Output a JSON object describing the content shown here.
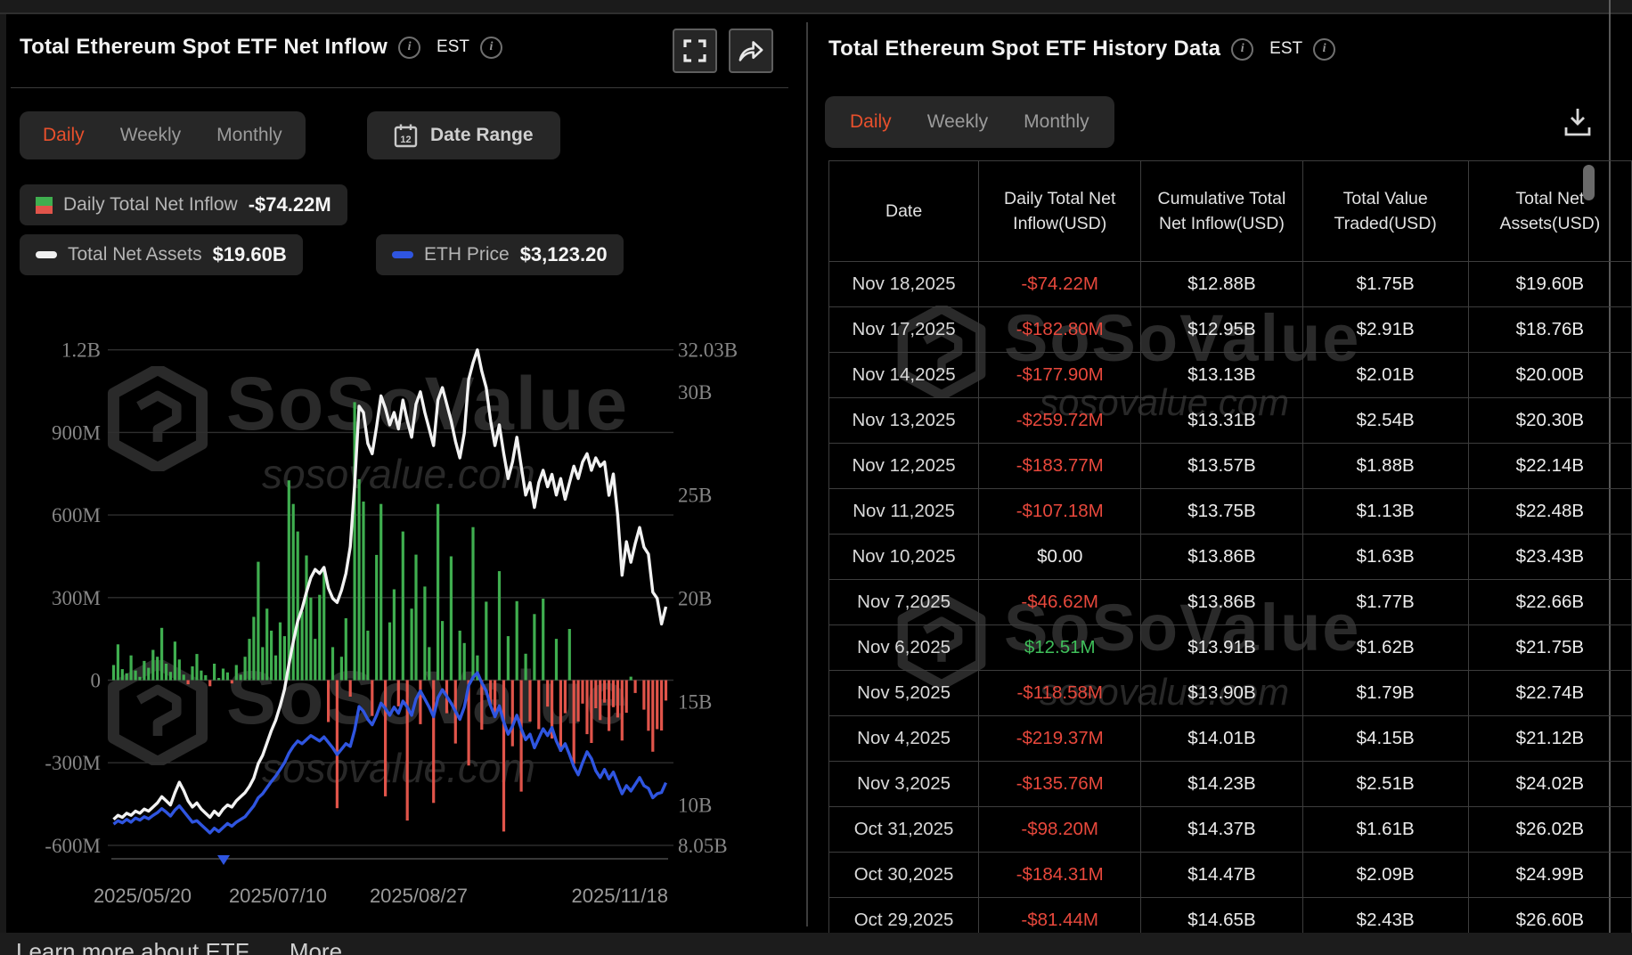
{
  "colors": {
    "accent_orange": "#e8502c",
    "negative_red": "#e8483c",
    "positive_green": "#3fbf5a",
    "bar_green": "#3fae4f",
    "bar_red": "#e0544a",
    "line_white": "#f2f2f2",
    "line_blue": "#2f55e0"
  },
  "left_panel": {
    "title": "Total Ethereum Spot ETF Net Inflow",
    "est_label": "EST",
    "tabs": [
      "Daily",
      "Weekly",
      "Monthly"
    ],
    "active_tab": "Daily",
    "date_range_label": "Date Range",
    "legend": {
      "inflow_label": "Daily Total Net Inflow",
      "inflow_value": "-$74.22M",
      "tna_label": "Total Net Assets",
      "tna_value": "$19.60B",
      "eth_label": "ETH Price",
      "eth_value": "$3,123.20"
    },
    "watermark_brand": "SoSoValue",
    "watermark_domain": "sosovalue.com"
  },
  "right_panel": {
    "title": "Total Ethereum Spot ETF History Data",
    "est_label": "EST",
    "tabs": [
      "Daily",
      "Weekly",
      "Monthly"
    ],
    "active_tab": "Daily",
    "table": {
      "columns": [
        "Date",
        "Daily Total Net Inflow(USD)",
        "Cumulative Total Net Inflow(USD)",
        "Total Value Traded(USD)",
        "Total Net Assets(USD)"
      ],
      "rows": [
        [
          "Nov 18,2025",
          "-$74.22M",
          "$12.88B",
          "$1.75B",
          "$19.60B"
        ],
        [
          "Nov 17,2025",
          "-$182.80M",
          "$12.95B",
          "$2.91B",
          "$18.76B"
        ],
        [
          "Nov 14,2025",
          "-$177.90M",
          "$13.13B",
          "$2.01B",
          "$20.00B"
        ],
        [
          "Nov 13,2025",
          "-$259.72M",
          "$13.31B",
          "$2.54B",
          "$20.30B"
        ],
        [
          "Nov 12,2025",
          "-$183.77M",
          "$13.57B",
          "$1.88B",
          "$22.14B"
        ],
        [
          "Nov 11,2025",
          "-$107.18M",
          "$13.75B",
          "$1.13B",
          "$22.48B"
        ],
        [
          "Nov 10,2025",
          "$0.00",
          "$13.86B",
          "$1.63B",
          "$23.43B"
        ],
        [
          "Nov 7,2025",
          "-$46.62M",
          "$13.86B",
          "$1.77B",
          "$22.66B"
        ],
        [
          "Nov 6,2025",
          "$12.51M",
          "$13.91B",
          "$1.62B",
          "$21.75B"
        ],
        [
          "Nov 5,2025",
          "-$118.58M",
          "$13.90B",
          "$1.79B",
          "$22.74B"
        ],
        [
          "Nov 4,2025",
          "-$219.37M",
          "$14.01B",
          "$4.15B",
          "$21.12B"
        ],
        [
          "Nov 3,2025",
          "-$135.76M",
          "$14.23B",
          "$2.51B",
          "$24.02B"
        ],
        [
          "Oct 31,2025",
          "-$98.20M",
          "$14.37B",
          "$1.61B",
          "$26.02B"
        ],
        [
          "Oct 30,2025",
          "-$184.31M",
          "$14.47B",
          "$2.09B",
          "$24.99B"
        ],
        [
          "Oct 29,2025",
          "-$81.44M",
          "$14.65B",
          "$2.43B",
          "$26.60B"
        ]
      ]
    }
  },
  "footer": {
    "learn_more": "Learn more about ETF",
    "more": "More"
  },
  "chart_data": {
    "type": "bar",
    "subtype": "combo-bar-plus-two-lines",
    "title": "Total Ethereum Spot ETF Net Inflow (Daily)",
    "x_axis": {
      "labels": [
        "2025/05/20",
        "2025/07/10",
        "2025/08/27",
        "2025/11/18"
      ]
    },
    "left_axis": {
      "labels": [
        "1.2B",
        "900M",
        "600M",
        "300M",
        "0",
        "-300M",
        "-600M"
      ],
      "values_millions": [
        1200,
        900,
        600,
        300,
        0,
        -300,
        -600
      ],
      "range_millions": [
        -600,
        1200
      ],
      "grid": true
    },
    "right_axis": {
      "labels": [
        "32.03B",
        "30B",
        "25B",
        "20B",
        "15B",
        "10B",
        "8.05B"
      ],
      "values_billions": [
        32.03,
        30,
        25,
        20,
        15,
        10,
        8.05
      ],
      "range_billions": [
        8.05,
        32.03
      ],
      "grid": false
    },
    "legend_position": "top-left",
    "series": [
      {
        "name": "Daily Total Net Inflow",
        "type": "bar",
        "unit": "USD millions",
        "latest": -74.22,
        "values": [
          55,
          130,
          40,
          25,
          90,
          35,
          12,
          70,
          45,
          110,
          85,
          190,
          60,
          30,
          140,
          75,
          20,
          -15,
          50,
          95,
          35,
          18,
          -22,
          60,
          8,
          42,
          28,
          -12,
          55,
          20,
          85,
          150,
          230,
          430,
          120,
          260,
          180,
          90,
          210,
          160,
          726,
          640,
          540,
          250,
          453,
          300,
          150,
          310,
          402,
          -152,
          120,
          -465,
          85,
          225,
          -60,
          1010,
          730,
          649,
          180,
          -130,
          455,
          640,
          -422,
          210,
          330,
          -95,
          540,
          -510,
          260,
          456,
          -160,
          340,
          120,
          -446,
          640,
          215,
          -120,
          450,
          -230,
          180,
          135,
          -310,
          556,
          90,
          -180,
          285,
          -88,
          -135,
          396,
          -550,
          160,
          -240,
          287,
          -405,
          96,
          -150,
          240,
          -178,
          296,
          -96,
          -212,
          150,
          -260,
          -120,
          186,
          -304,
          -150,
          -85,
          -196,
          -228,
          -102,
          -145,
          -81.44,
          -184.31,
          -98.2,
          -135.76,
          -219.37,
          -118.58,
          12.51,
          -46.62,
          0,
          -107.18,
          -183.77,
          -259.72,
          -177.9,
          -182.8,
          -74.22
        ]
      },
      {
        "name": "Total Net Assets",
        "type": "line",
        "unit": "USD billions",
        "latest": 19.6,
        "values": [
          9.3,
          9.5,
          9.4,
          9.6,
          9.5,
          9.7,
          9.6,
          9.8,
          9.7,
          9.9,
          10.1,
          10.4,
          10.2,
          10.0,
          10.6,
          11.1,
          10.7,
          10.2,
          9.9,
          10.1,
          9.8,
          9.6,
          9.4,
          9.7,
          9.5,
          9.8,
          10.0,
          9.9,
          10.2,
          10.4,
          10.6,
          10.9,
          11.3,
          12.0,
          12.4,
          13.0,
          13.6,
          14.1,
          14.8,
          15.6,
          16.8,
          17.9,
          18.9,
          19.5,
          20.3,
          21.0,
          21.4,
          21.2,
          21.5,
          20.5,
          20.0,
          19.8,
          20.4,
          21.2,
          22.5,
          25.5,
          29.3,
          29.0,
          27.5,
          27.0,
          28.3,
          29.8,
          29.2,
          28.4,
          29.0,
          28.2,
          29.6,
          28.6,
          27.8,
          29.4,
          30.0,
          29.0,
          28.2,
          27.4,
          29.6,
          30.2,
          29.4,
          28.6,
          27.6,
          26.8,
          28.0,
          30.6,
          31.4,
          32.03,
          31.0,
          30.2,
          28.6,
          27.4,
          28.4,
          27.0,
          25.8,
          26.6,
          27.8,
          26.4,
          25.0,
          25.6,
          24.4,
          25.6,
          26.2,
          25.4,
          26.0,
          25.0,
          25.8,
          24.8,
          25.6,
          26.4,
          25.8,
          26.6,
          27.0,
          26.2,
          26.8,
          26.4,
          26.6,
          24.99,
          26.02,
          24.02,
          21.12,
          22.74,
          21.75,
          22.66,
          23.43,
          22.48,
          22.14,
          20.3,
          20.0,
          18.76,
          19.6
        ]
      },
      {
        "name": "ETH Price",
        "type": "line",
        "unit": "USD",
        "latest": 3123.2,
        "visual_range": [
          2380,
          4750
        ],
        "values": [
          2510,
          2560,
          2530,
          2580,
          2540,
          2600,
          2570,
          2620,
          2590,
          2640,
          2680,
          2740,
          2690,
          2630,
          2720,
          2780,
          2700,
          2620,
          2540,
          2560,
          2500,
          2440,
          2380,
          2450,
          2400,
          2460,
          2520,
          2480,
          2540,
          2580,
          2620,
          2700,
          2780,
          2900,
          2960,
          3050,
          3140,
          3220,
          3320,
          3420,
          3560,
          3660,
          3740,
          3700,
          3760,
          3820,
          3780,
          3740,
          3800,
          3720,
          3640,
          3540,
          3620,
          3700,
          3660,
          3900,
          4250,
          4180,
          4060,
          3980,
          4120,
          4300,
          4220,
          4120,
          4240,
          4150,
          4330,
          4240,
          4120,
          4360,
          4480,
          4360,
          4240,
          4100,
          4380,
          4500,
          4400,
          4300,
          4180,
          4060,
          4240,
          4560,
          4680,
          4750,
          4600,
          4480,
          4260,
          4100,
          4260,
          4020,
          3840,
          3960,
          4120,
          3920,
          3760,
          3840,
          3640,
          3780,
          3920,
          3820,
          3940,
          3740,
          3600,
          3700,
          3540,
          3360,
          3240,
          3420,
          3580,
          3480,
          3300,
          3200,
          3320,
          3180,
          3280,
          3120,
          2960,
          3080,
          3000,
          3100,
          3200,
          3080,
          3040,
          2900,
          2960,
          2980,
          3123.2
        ]
      }
    ]
  }
}
